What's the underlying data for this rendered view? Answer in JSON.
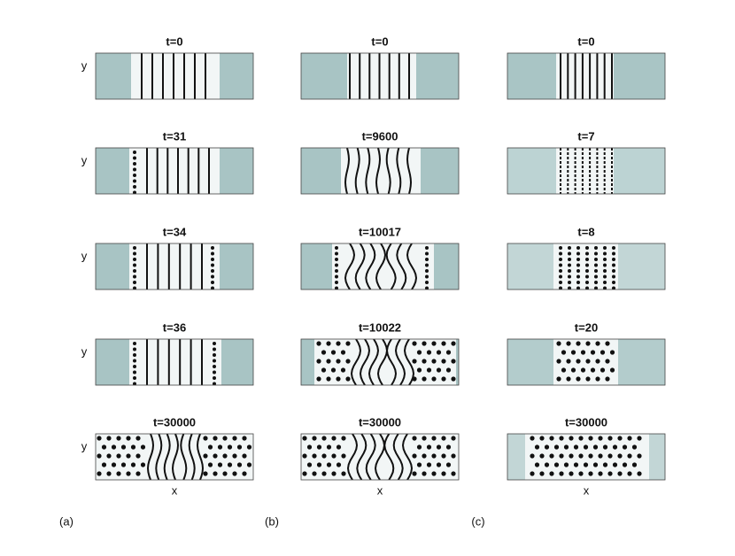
{
  "columns": [
    {
      "label": "(a)",
      "panels": [
        {
          "title": "t=0"
        },
        {
          "title": "t=31"
        },
        {
          "title": "t=34"
        },
        {
          "title": "t=36"
        },
        {
          "title": "t=30000"
        }
      ]
    },
    {
      "label": "(b)",
      "panels": [
        {
          "title": "t=0"
        },
        {
          "title": "t=9600"
        },
        {
          "title": "t=10017"
        },
        {
          "title": "t=10022"
        },
        {
          "title": "t=30000"
        }
      ]
    },
    {
      "label": "(c)",
      "panels": [
        {
          "title": "t=0"
        },
        {
          "title": "t=7"
        },
        {
          "title": "t=8"
        },
        {
          "title": "t=20"
        },
        {
          "title": "t=30000"
        }
      ]
    }
  ],
  "y_label": "y",
  "x_label": "x"
}
